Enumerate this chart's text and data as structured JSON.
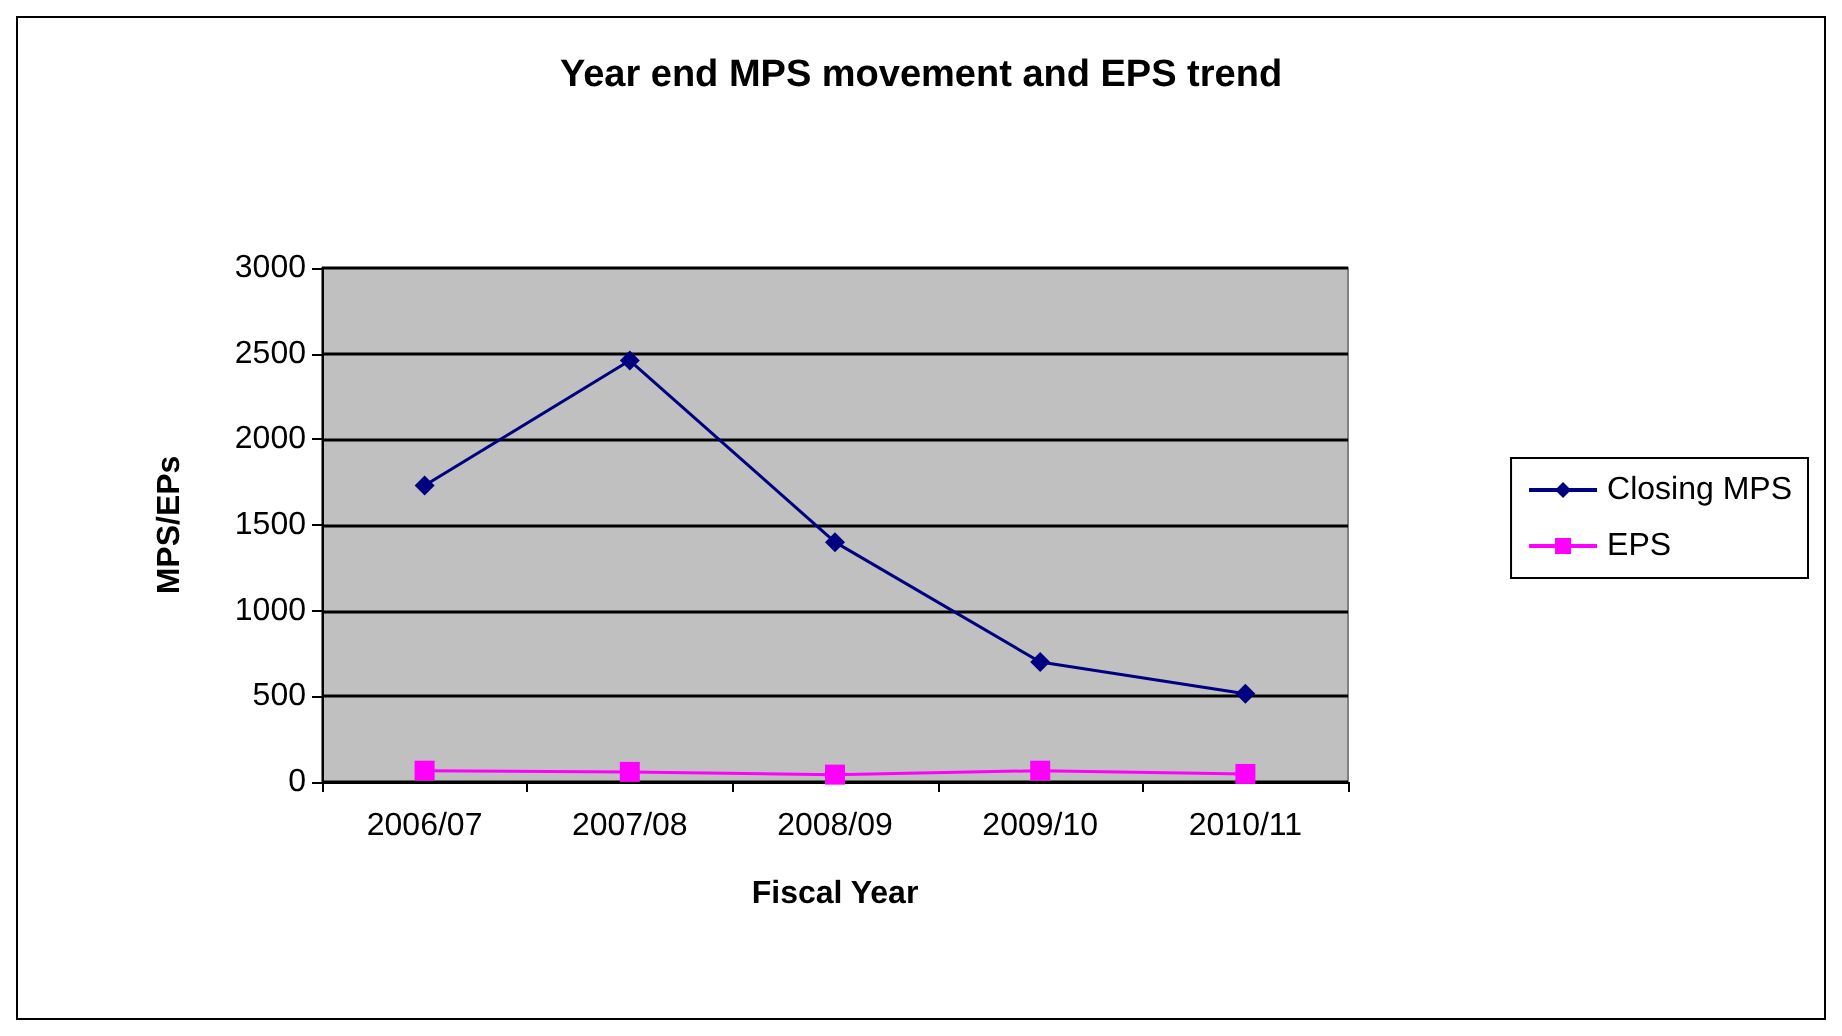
{
  "chart_data": {
    "type": "line",
    "title": "Year end MPS movement and EPS trend",
    "xlabel": "Fiscal Year",
    "ylabel": "MPS/EPs",
    "categories": [
      "2006/07",
      "2007/08",
      "2008/09",
      "2009/10",
      "2010/11"
    ],
    "series": [
      {
        "name": "Closing MPS",
        "color": "#000080",
        "marker": "diamond",
        "values": [
          1730,
          2460,
          1400,
          700,
          515
        ]
      },
      {
        "name": "EPS",
        "color": "#ff00ff",
        "marker": "square",
        "values": [
          66,
          59,
          43,
          66,
          47
        ]
      }
    ],
    "ylim": [
      0,
      3000
    ],
    "yticks": [
      0,
      500,
      1000,
      1500,
      2000,
      2500,
      3000
    ],
    "grid": "y",
    "legend": "right",
    "line_style": "solid"
  }
}
